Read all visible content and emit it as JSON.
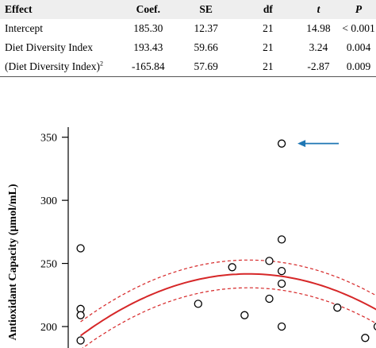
{
  "table": {
    "headers": {
      "effect": "Effect",
      "coef": "Coef.",
      "se": "SE",
      "df": "df",
      "t": "t",
      "p": "P"
    },
    "rows": [
      {
        "effect": "Intercept",
        "coef": "185.30",
        "se": "12.37",
        "df": "21",
        "t": "14.98",
        "p": "< 0.001"
      },
      {
        "effect": "Diet Diversity Index",
        "coef": "193.43",
        "se": "59.66",
        "df": "21",
        "t": "3.24",
        "p": "0.004"
      },
      {
        "effect": "(Diet Diversity Index)",
        "effect_sup": "2",
        "coef": "-165.84",
        "se": "57.69",
        "df": "21",
        "t": "-2.87",
        "p": "0.009"
      }
    ]
  },
  "chart_data": {
    "type": "scatter",
    "ylabel": "Antioxidant Capacity (µmol/mL)",
    "xlabel": "",
    "y_ticks": [
      200,
      250,
      300,
      350
    ],
    "ylim": [
      183,
      358
    ],
    "xlim": [
      0,
      1
    ],
    "points": [
      {
        "x": 0.04,
        "y": 262
      },
      {
        "x": 0.04,
        "y": 214
      },
      {
        "x": 0.04,
        "y": 209
      },
      {
        "x": 0.04,
        "y": 189
      },
      {
        "x": 0.42,
        "y": 218
      },
      {
        "x": 0.53,
        "y": 247
      },
      {
        "x": 0.57,
        "y": 209
      },
      {
        "x": 0.65,
        "y": 252
      },
      {
        "x": 0.65,
        "y": 222
      },
      {
        "x": 0.69,
        "y": 345
      },
      {
        "x": 0.69,
        "y": 269
      },
      {
        "x": 0.69,
        "y": 244
      },
      {
        "x": 0.69,
        "y": 234
      },
      {
        "x": 0.69,
        "y": 200
      },
      {
        "x": 0.87,
        "y": 215
      },
      {
        "x": 0.96,
        "y": 191
      },
      {
        "x": 1.0,
        "y": 200
      }
    ],
    "fit": {
      "intercept": 185.3,
      "linear": 193.43,
      "quadratic": -165.84,
      "x_start": 0.04
    },
    "ci_halfwidth": 11,
    "annotation": {
      "type": "arrow",
      "target_point": 9
    },
    "colors": {
      "fit": "#d62728",
      "arrow": "#1f77b4",
      "points": "#000000"
    }
  }
}
